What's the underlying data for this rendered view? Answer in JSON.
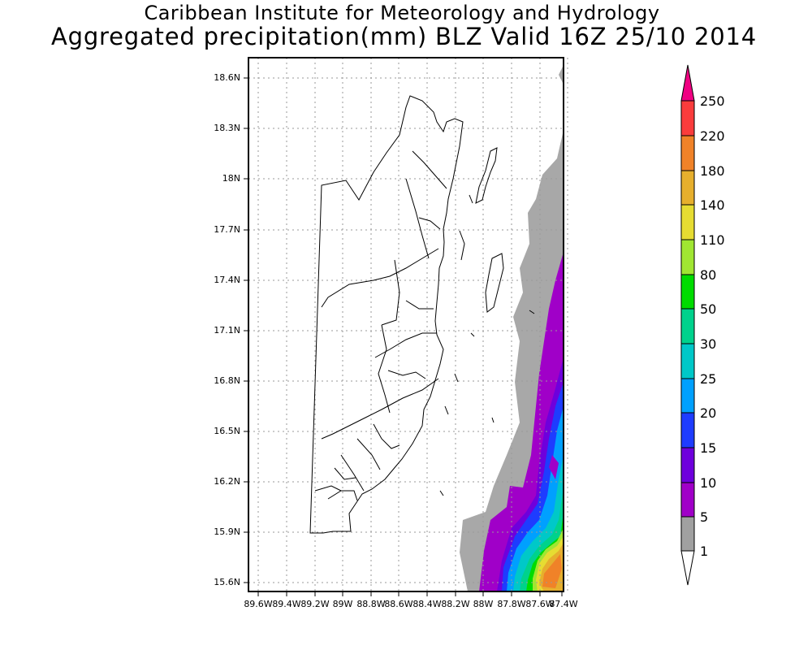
{
  "title": {
    "line1": "Caribbean Institute for Meteorology and Hydrology",
    "line2": "Aggregated precipitation(mm) BLZ Valid 16Z 25/10 2014"
  },
  "map": {
    "lat_labels": [
      "18.6N",
      "18.3N",
      "18N",
      "17.7N",
      "17.4N",
      "17.1N",
      "16.8N",
      "16.5N",
      "16.2N",
      "15.9N",
      "15.6N"
    ],
    "lon_labels": [
      "89.6W",
      "89.4W",
      "89.2W",
      "89W",
      "88.8W",
      "88.6W",
      "88.4W",
      "88.2W",
      "88W",
      "87.8W",
      "87.6W",
      "87.4W"
    ],
    "grid": true
  },
  "colorbar": {
    "labels": [
      "1",
      "5",
      "10",
      "15",
      "20",
      "25",
      "30",
      "50",
      "80",
      "110",
      "140",
      "180",
      "220",
      "250"
    ],
    "colors": [
      "#ffffff",
      "#a0a0a0",
      "#a000c8",
      "#6e00dc",
      "#1e3cff",
      "#00a0ff",
      "#00c8c8",
      "#00d28c",
      "#00dc00",
      "#a0e632",
      "#e6dc32",
      "#e6af2d",
      "#f08228",
      "#fa3c3c",
      "#f00082"
    ]
  }
}
